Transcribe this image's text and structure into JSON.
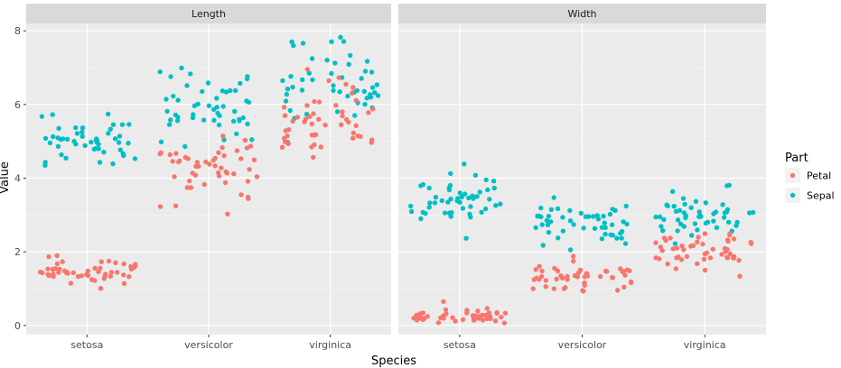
{
  "chart_data": {
    "type": "scatter",
    "jitter": true,
    "facets": [
      "Length",
      "Width"
    ],
    "categories": [
      "setosa",
      "versicolor",
      "virginica"
    ],
    "xlabel": "Species",
    "ylabel": "Value",
    "ylim": [
      -0.25,
      8.2
    ],
    "yticks": [
      0,
      2,
      4,
      6,
      8
    ],
    "grid": true,
    "legend": {
      "title": "Part",
      "placement": "right",
      "entries": [
        "Petal",
        "Sepal"
      ]
    },
    "colors": {
      "Petal": "#F8766D",
      "Sepal": "#00BFC4"
    },
    "series": [
      {
        "name": "Sepal",
        "facet": "Length",
        "values": {
          "setosa": [
            5.1,
            4.9,
            4.7,
            4.6,
            5.0,
            5.4,
            4.6,
            5.0,
            4.4,
            4.9,
            5.4,
            4.8,
            4.8,
            4.3,
            5.8,
            5.7,
            5.4,
            5.1,
            5.7,
            5.1,
            5.4,
            5.1,
            4.6,
            5.1,
            4.8,
            5.0,
            5.0,
            5.2,
            5.2,
            4.7,
            4.8,
            5.4,
            5.2,
            5.5,
            4.9,
            5.0,
            5.5,
            4.9,
            4.4,
            5.1,
            5.0,
            4.5,
            4.4,
            5.0,
            5.1,
            4.8,
            5.1,
            4.6,
            5.3,
            5.0
          ],
          "versicolor": [
            7.0,
            6.4,
            6.9,
            5.5,
            6.5,
            5.7,
            6.3,
            4.9,
            6.6,
            5.2,
            5.0,
            5.9,
            6.0,
            6.1,
            5.6,
            6.7,
            5.6,
            5.8,
            6.2,
            5.6,
            5.9,
            6.1,
            6.3,
            6.1,
            6.4,
            6.6,
            6.8,
            6.7,
            6.0,
            5.7,
            5.5,
            5.5,
            5.8,
            6.0,
            5.4,
            6.0,
            6.7,
            6.3,
            5.6,
            5.5,
            5.5,
            6.1,
            5.8,
            5.0,
            5.6,
            5.7,
            5.7,
            6.2,
            5.1,
            5.7
          ],
          "virginica": [
            6.3,
            5.8,
            7.1,
            6.3,
            6.5,
            7.6,
            4.9,
            7.3,
            6.7,
            7.2,
            6.5,
            6.4,
            6.8,
            5.7,
            5.8,
            6.4,
            6.5,
            7.7,
            7.7,
            6.0,
            6.9,
            5.6,
            7.7,
            6.3,
            6.7,
            7.2,
            6.2,
            6.1,
            6.4,
            7.2,
            7.4,
            7.9,
            6.4,
            6.3,
            6.1,
            7.7,
            6.3,
            6.4,
            6.0,
            6.9,
            6.7,
            6.9,
            5.8,
            6.8,
            6.7,
            6.7,
            6.3,
            6.5,
            6.2,
            5.9
          ]
        }
      },
      {
        "name": "Petal",
        "facet": "Length",
        "values": {
          "setosa": [
            1.4,
            1.4,
            1.3,
            1.5,
            1.4,
            1.7,
            1.4,
            1.5,
            1.4,
            1.5,
            1.5,
            1.6,
            1.4,
            1.1,
            1.2,
            1.5,
            1.3,
            1.4,
            1.7,
            1.5,
            1.7,
            1.5,
            1.0,
            1.7,
            1.9,
            1.6,
            1.6,
            1.5,
            1.4,
            1.6,
            1.6,
            1.5,
            1.5,
            1.4,
            1.5,
            1.2,
            1.3,
            1.4,
            1.3,
            1.5,
            1.3,
            1.3,
            1.3,
            1.6,
            1.9,
            1.4,
            1.6,
            1.4,
            1.5,
            1.4
          ],
          "versicolor": [
            4.7,
            4.5,
            4.9,
            4.0,
            4.6,
            4.5,
            4.7,
            3.3,
            4.6,
            3.9,
            3.5,
            4.2,
            4.0,
            4.7,
            3.6,
            4.4,
            4.5,
            4.1,
            4.5,
            3.9,
            4.8,
            4.0,
            4.9,
            4.7,
            4.3,
            4.4,
            4.8,
            5.0,
            4.5,
            3.5,
            3.8,
            3.7,
            3.9,
            5.1,
            4.5,
            4.5,
            4.7,
            4.4,
            4.1,
            4.0,
            4.4,
            4.6,
            4.0,
            3.3,
            4.2,
            4.2,
            4.2,
            4.3,
            3.0,
            4.1
          ],
          "virginica": [
            6.0,
            5.1,
            5.9,
            5.6,
            5.8,
            6.6,
            4.5,
            6.3,
            5.8,
            6.1,
            5.1,
            5.3,
            5.5,
            5.0,
            5.1,
            5.3,
            5.5,
            6.7,
            6.9,
            5.0,
            5.7,
            4.9,
            6.7,
            4.9,
            5.7,
            6.0,
            4.8,
            4.9,
            5.6,
            5.8,
            6.1,
            6.4,
            5.6,
            5.1,
            5.6,
            6.1,
            5.6,
            5.5,
            4.8,
            5.4,
            5.6,
            5.1,
            5.1,
            5.9,
            5.7,
            5.2,
            5.0,
            5.2,
            5.4,
            5.1
          ]
        }
      },
      {
        "name": "Sepal",
        "facet": "Width",
        "values": {
          "setosa": [
            3.5,
            3.0,
            3.2,
            3.1,
            3.6,
            3.9,
            3.4,
            3.4,
            2.9,
            3.1,
            3.7,
            3.4,
            3.0,
            3.0,
            4.0,
            4.4,
            3.9,
            3.5,
            3.8,
            3.8,
            3.4,
            3.7,
            3.6,
            3.3,
            3.4,
            3.0,
            3.4,
            3.5,
            3.4,
            3.2,
            3.1,
            3.4,
            4.1,
            4.2,
            3.1,
            3.2,
            3.5,
            3.6,
            3.0,
            3.4,
            3.5,
            2.3,
            3.2,
            3.5,
            3.8,
            3.0,
            3.8,
            3.2,
            3.7,
            3.3
          ],
          "versicolor": [
            3.2,
            3.2,
            3.1,
            2.3,
            2.8,
            2.8,
            3.3,
            2.4,
            2.9,
            2.7,
            2.0,
            3.0,
            2.2,
            2.9,
            2.9,
            3.1,
            3.0,
            2.7,
            2.2,
            2.5,
            3.2,
            2.8,
            2.5,
            2.8,
            2.9,
            3.0,
            2.8,
            3.0,
            2.9,
            2.6,
            2.4,
            2.4,
            2.7,
            2.7,
            3.0,
            3.4,
            3.1,
            2.3,
            3.0,
            2.5,
            2.6,
            3.0,
            2.6,
            2.3,
            2.7,
            3.0,
            2.9,
            2.9,
            2.5,
            2.8
          ],
          "virginica": [
            3.3,
            2.7,
            3.0,
            2.9,
            3.0,
            3.0,
            2.5,
            2.9,
            2.5,
            3.6,
            3.2,
            2.7,
            3.0,
            2.5,
            2.8,
            3.2,
            3.0,
            3.8,
            2.6,
            2.2,
            3.2,
            2.8,
            2.8,
            2.7,
            3.3,
            3.2,
            2.8,
            3.0,
            2.8,
            3.0,
            2.8,
            3.8,
            2.8,
            2.8,
            2.6,
            3.0,
            3.4,
            3.1,
            3.0,
            3.1,
            3.1,
            3.1,
            2.7,
            3.2,
            3.3,
            3.0,
            2.5,
            3.0,
            3.4,
            3.0
          ]
        }
      },
      {
        "name": "Petal",
        "facet": "Width",
        "values": {
          "setosa": [
            0.2,
            0.2,
            0.2,
            0.2,
            0.2,
            0.4,
            0.3,
            0.2,
            0.2,
            0.1,
            0.2,
            0.2,
            0.1,
            0.1,
            0.2,
            0.4,
            0.4,
            0.3,
            0.3,
            0.3,
            0.2,
            0.4,
            0.2,
            0.5,
            0.2,
            0.2,
            0.4,
            0.2,
            0.2,
            0.2,
            0.2,
            0.4,
            0.1,
            0.2,
            0.2,
            0.2,
            0.2,
            0.1,
            0.2,
            0.2,
            0.3,
            0.3,
            0.2,
            0.6,
            0.4,
            0.3,
            0.2,
            0.2,
            0.2,
            0.2
          ],
          "versicolor": [
            1.4,
            1.5,
            1.5,
            1.3,
            1.5,
            1.3,
            1.6,
            1.0,
            1.3,
            1.4,
            1.0,
            1.5,
            1.0,
            1.4,
            1.3,
            1.4,
            1.5,
            1.0,
            1.5,
            1.1,
            1.8,
            1.3,
            1.5,
            1.2,
            1.3,
            1.4,
            1.4,
            1.7,
            1.5,
            1.0,
            1.1,
            1.0,
            1.2,
            1.6,
            1.5,
            1.6,
            1.5,
            1.3,
            1.3,
            1.3,
            1.2,
            1.4,
            1.2,
            1.0,
            1.3,
            1.2,
            1.3,
            1.3,
            1.1,
            1.3
          ],
          "virginica": [
            2.5,
            1.9,
            2.1,
            1.8,
            2.2,
            2.1,
            1.7,
            1.8,
            1.8,
            2.5,
            2.0,
            1.9,
            2.1,
            2.0,
            2.4,
            2.3,
            1.8,
            2.2,
            2.3,
            1.5,
            2.3,
            2.0,
            2.0,
            1.8,
            2.1,
            1.8,
            1.8,
            1.8,
            2.1,
            1.6,
            1.9,
            2.0,
            2.2,
            1.5,
            1.4,
            2.3,
            2.4,
            1.8,
            1.8,
            2.1,
            2.4,
            2.3,
            1.9,
            2.3,
            2.5,
            2.3,
            1.9,
            2.0,
            2.3,
            1.8
          ]
        }
      }
    ]
  }
}
